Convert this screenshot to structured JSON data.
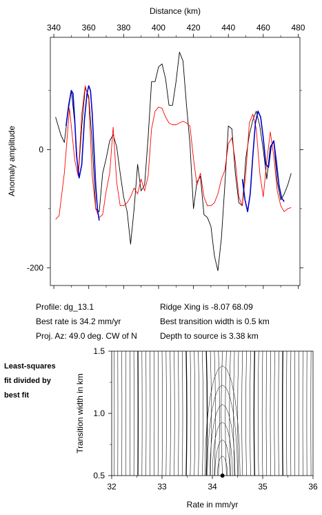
{
  "chart_data": [
    {
      "type": "line",
      "title": "",
      "xlabel": "Distance (km)",
      "ylabel": "Anomaly amplitude",
      "xlim": [
        338,
        481
      ],
      "ylim": [
        -230,
        190
      ],
      "x_ticks": [
        "340",
        "360",
        "380",
        "400",
        "420",
        "440",
        "460",
        "480"
      ],
      "x_tick_values": [
        340,
        360,
        380,
        400,
        420,
        440,
        460,
        480
      ],
      "y_ticks": [
        "-200",
        "0"
      ],
      "y_tick_values": [
        -200,
        0
      ],
      "series": [
        {
          "color": "#000000",
          "x": [
            341,
            344,
            346,
            348,
            350,
            352,
            354,
            356,
            358,
            360,
            362,
            364,
            366,
            368,
            370,
            372,
            374,
            376,
            378,
            380,
            382,
            384,
            386,
            388,
            390,
            392,
            394,
            396,
            398,
            400,
            402,
            404,
            406,
            408,
            410,
            412,
            414,
            416,
            418,
            420,
            422,
            424,
            426,
            428,
            430,
            432,
            434,
            436,
            438,
            440,
            442,
            444,
            446,
            448,
            450,
            452,
            454,
            456,
            458,
            460,
            462,
            464,
            466,
            468,
            470,
            472,
            474,
            476
          ],
          "y": [
            55,
            25,
            12,
            60,
            100,
            45,
            -45,
            40,
            105,
            90,
            10,
            -100,
            -105,
            -40,
            -15,
            15,
            25,
            5,
            -40,
            -80,
            -105,
            -160,
            -100,
            -25,
            -70,
            -60,
            20,
            115,
            115,
            140,
            145,
            120,
            75,
            75,
            115,
            165,
            150,
            75,
            10,
            -100,
            -55,
            -45,
            -110,
            -115,
            -130,
            -180,
            -205,
            -150,
            -60,
            40,
            35,
            -40,
            -90,
            -95,
            -15,
            25,
            50,
            65,
            40,
            0,
            -50,
            5,
            15,
            -55,
            -85,
            -75,
            -60,
            -40
          ]
        },
        {
          "color": "#ff0000",
          "x": [
            341,
            343,
            346,
            349,
            352,
            354,
            356,
            358,
            360,
            362,
            364,
            366,
            368,
            370,
            372,
            374,
            376,
            378,
            380,
            382,
            384,
            386,
            388,
            390,
            392,
            394,
            396,
            398,
            400,
            402,
            404,
            406,
            408,
            410,
            412,
            414,
            416,
            418,
            420,
            422,
            424,
            426,
            428,
            430,
            432,
            434,
            436,
            438,
            440,
            442,
            444,
            446,
            448,
            450,
            452,
            454,
            456,
            458,
            460,
            462,
            464,
            466,
            468,
            470,
            472,
            474,
            476
          ],
          "y": [
            -118,
            -112,
            -40,
            70,
            -18,
            -45,
            60,
            108,
            85,
            -45,
            -100,
            -115,
            -110,
            -70,
            -40,
            38,
            -55,
            -95,
            -95,
            -90,
            -80,
            -65,
            -75,
            -50,
            -70,
            -45,
            35,
            65,
            72,
            70,
            55,
            45,
            42,
            42,
            45,
            48,
            45,
            40,
            -15,
            -60,
            -40,
            -80,
            -95,
            -95,
            -90,
            -75,
            -50,
            -35,
            10,
            20,
            -20,
            -80,
            -95,
            -40,
            45,
            60,
            35,
            -40,
            -80,
            -20,
            30,
            -10,
            -70,
            -95,
            -105,
            -100,
            -98
          ]
        },
        {
          "color": "#0000cc",
          "x": [
            347,
            348.5,
            350,
            351,
            352,
            353,
            354.5,
            356,
            357.5,
            359,
            360,
            361,
            362,
            363,
            364,
            365,
            366
          ],
          "y": [
            40,
            75,
            100,
            95,
            50,
            -10,
            -48,
            -25,
            50,
            95,
            108,
            100,
            60,
            0,
            -60,
            -100,
            -120
          ]
        },
        {
          "color": "#0000cc",
          "x": [
            448,
            449.5,
            451,
            452.5,
            454,
            455.5,
            457,
            458.5,
            460,
            461.5,
            463,
            464.5,
            466,
            467.5,
            469,
            470.5,
            472
          ],
          "y": [
            -50,
            -85,
            -105,
            -75,
            -10,
            45,
            65,
            55,
            20,
            -25,
            -30,
            5,
            15,
            -20,
            -60,
            -82,
            -88
          ]
        }
      ]
    },
    {
      "type": "contour",
      "title": "",
      "xlabel": "Rate in mm/yr",
      "ylabel": "Transition width in km",
      "xlim": [
        32,
        36
      ],
      "ylim": [
        0.5,
        1.5
      ],
      "x_ticks": [
        "32",
        "33",
        "34",
        "35",
        "36"
      ],
      "x_tick_values": [
        32,
        33,
        34,
        35,
        36
      ],
      "y_ticks": [
        "0.5",
        "1.0",
        "1.5"
      ],
      "y_tick_values": [
        0.5,
        1.0,
        1.5
      ],
      "best_fit_point": {
        "x": 34.2,
        "y": 0.5
      },
      "contour_centers_x": [
        32.05,
        32.12,
        32.2,
        32.28,
        32.36,
        32.44,
        32.52,
        32.6,
        32.68,
        32.76,
        32.84,
        32.92,
        33.0,
        33.08,
        33.16,
        33.24,
        33.32,
        33.4,
        33.48,
        33.56,
        33.64,
        33.72,
        33.8,
        33.88,
        33.96,
        34.04,
        34.12,
        34.2,
        34.28,
        34.36,
        34.44,
        34.52,
        34.6,
        34.68,
        34.76,
        34.84,
        34.92,
        35.0,
        35.08,
        35.16,
        35.24,
        35.32,
        35.4,
        35.48,
        35.56,
        35.64,
        35.72,
        35.8,
        35.88,
        35.96
      ],
      "bold_contour_x": [
        32.52,
        33.48,
        33.88,
        34.84,
        35.4
      ]
    }
  ],
  "info": {
    "profile": "Profile: dg_13.1",
    "best_rate": "Best rate is 34.2 mm/yr",
    "proj_az": "Proj. Az: 49.0 deg. CW of N",
    "ridge_xing": "Ridge Xing is -8.07 68.09",
    "transition": "Best transition width is 0.5 km",
    "depth": "Depth to source is   3.38 km"
  },
  "side_note": [
    "Least-squares",
    "fit divided by",
    "best fit"
  ]
}
